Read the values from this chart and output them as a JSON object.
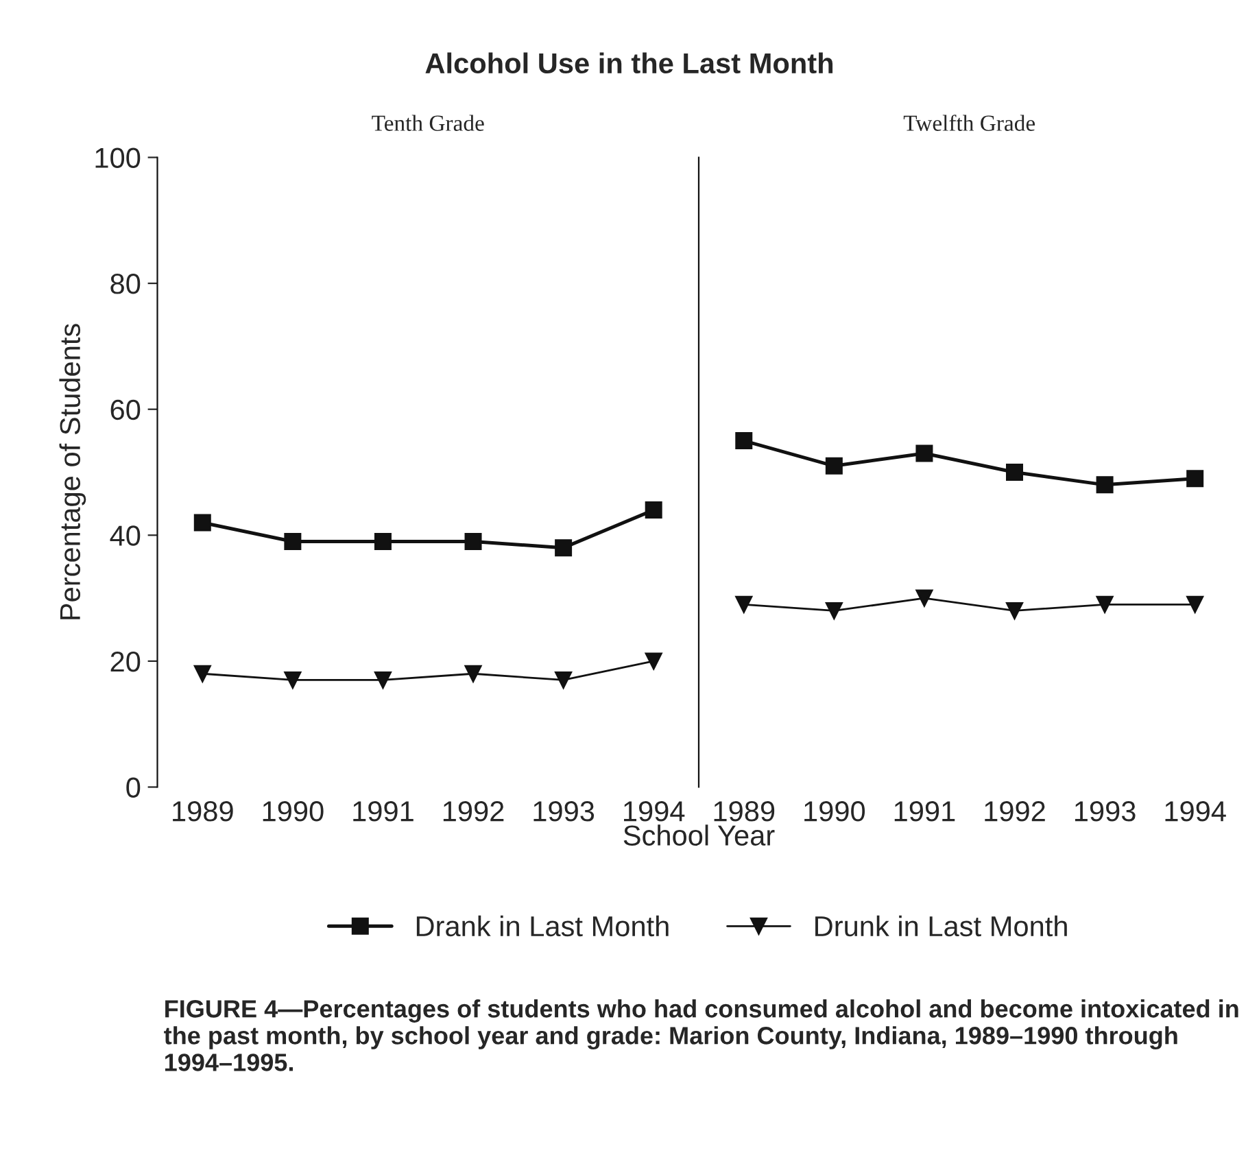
{
  "chart_data": [
    {
      "type": "line",
      "title": "Alcohol Use in the Last Month",
      "subtitle": "Tenth Grade",
      "ylabel": "Percentage of Students",
      "xlabel": "School Year",
      "categories": [
        "1989",
        "1990",
        "1991",
        "1992",
        "1993",
        "1994"
      ],
      "series": [
        {
          "name": "Drank in Last Month",
          "color": "#111111",
          "marker": "square",
          "values": [
            42,
            39,
            39,
            39,
            38,
            44
          ]
        },
        {
          "name": "Drunk in Last Month",
          "color": "#111111",
          "marker": "triangle",
          "values": [
            18,
            17,
            17,
            18,
            17,
            20
          ]
        }
      ],
      "ylim": [
        0,
        100
      ],
      "yticks": [
        0,
        20,
        40,
        60,
        80,
        100
      ],
      "legend": "bottom",
      "grid": false,
      "annotations": [
        "FIGURE 4—Percentages of students who had consumed alcohol and become intoxicated in the past month, by school year and grade: Marion County, Indiana, 1989–1990 through 1994–1995."
      ]
    },
    {
      "type": "line",
      "subtitle": "Twelfth Grade",
      "categories": [
        "1989",
        "1990",
        "1991",
        "1992",
        "1993",
        "1994"
      ],
      "series": [
        {
          "color": "#111111",
          "marker": "square",
          "values": [
            55,
            51,
            53,
            50,
            48,
            49
          ]
        },
        {
          "color": "#111111",
          "marker": "triangle",
          "values": [
            29,
            28,
            30,
            28,
            29,
            29
          ]
        }
      ],
      "ylim": [
        0,
        100
      ],
      "yticks": [
        0,
        20,
        40,
        60,
        80,
        100
      ],
      "tick_labels": "x",
      "grid": false
    }
  ]
}
